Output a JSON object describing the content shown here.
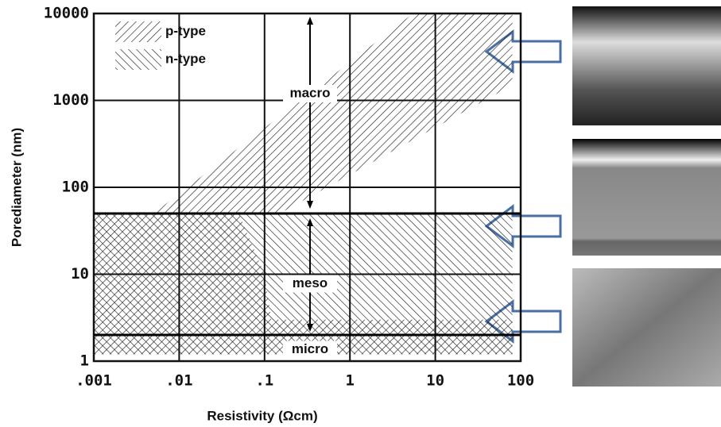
{
  "chart_data": {
    "type": "region",
    "x_label": "Resistivity (Ωcm)",
    "y_label": "Porediameter (nm)",
    "log_x": true,
    "log_y": true,
    "grid": true,
    "xlim": [
      0.001,
      100
    ],
    "ylim": [
      1,
      10000
    ],
    "xticks": [
      {
        "value": 0.001,
        "label": ".001"
      },
      {
        "value": 0.01,
        "label": ".01"
      },
      {
        "value": 0.1,
        "label": ".1"
      },
      1,
      10,
      100
    ],
    "yticks": [
      1,
      10,
      100,
      1000,
      10000
    ],
    "series": [
      {
        "name": "p-type",
        "color": "#222",
        "hatch": "//",
        "x": [
          0.001,
          0.001,
          0.005,
          5.5,
          80,
          80,
          0.15,
          0.05,
          0.1,
          0.12,
          80,
          80
        ],
        "y": [
          1.2,
          50,
          50,
          10000,
          10000,
          1500,
          50,
          50,
          10,
          3,
          3,
          1.2
        ]
      },
      {
        "name": "n-type",
        "color": "#222",
        "hatch": "\\\\",
        "x": [
          0.001,
          0.001,
          80,
          80
        ],
        "y": [
          1.2,
          50,
          50,
          1.2
        ]
      }
    ],
    "hlines": [
      50,
      2
    ],
    "annotations": [
      "macro",
      "meso",
      "micro"
    ]
  }
}
